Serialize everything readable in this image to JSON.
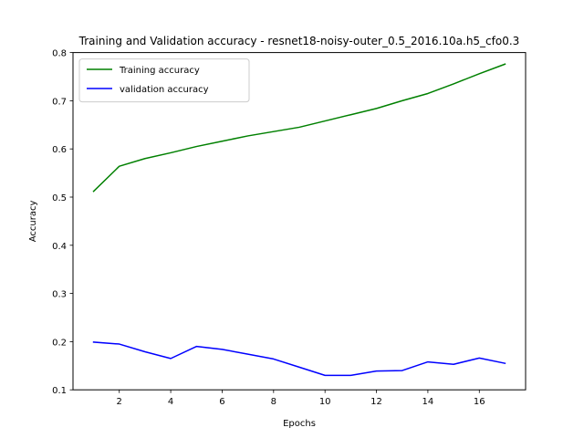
{
  "chart_data": {
    "type": "line",
    "title": "Training and Validation accuracy - resnet18-noisy-outer_0.5_2016.10a.h5_cfo0.3",
    "xlabel": "Epochs",
    "ylabel": "Accuracy",
    "xlim": [
      0.2,
      17.8
    ],
    "ylim": [
      0.1,
      0.8
    ],
    "xticks": [
      2,
      4,
      6,
      8,
      10,
      12,
      14,
      16
    ],
    "yticks": [
      0.1,
      0.2,
      0.3,
      0.4,
      0.5,
      0.6,
      0.7,
      0.8
    ],
    "grid": false,
    "legend_position": "upper-left",
    "x": [
      1,
      2,
      3,
      4,
      5,
      6,
      7,
      8,
      9,
      10,
      11,
      12,
      13,
      14,
      15,
      16,
      17
    ],
    "series": [
      {
        "name": "Training accuracy",
        "color": "#008000",
        "values": [
          0.512,
          0.564,
          0.58,
          0.592,
          0.605,
          0.616,
          0.627,
          0.636,
          0.645,
          0.658,
          0.671,
          0.684,
          0.7,
          0.715,
          0.735,
          0.756,
          0.776
        ]
      },
      {
        "name": "validation accuracy",
        "color": "#0000ff",
        "values": [
          0.199,
          0.195,
          0.179,
          0.165,
          0.19,
          0.184,
          0.174,
          0.164,
          0.147,
          0.13,
          0.13,
          0.139,
          0.14,
          0.158,
          0.153,
          0.166,
          0.155
        ]
      }
    ]
  }
}
